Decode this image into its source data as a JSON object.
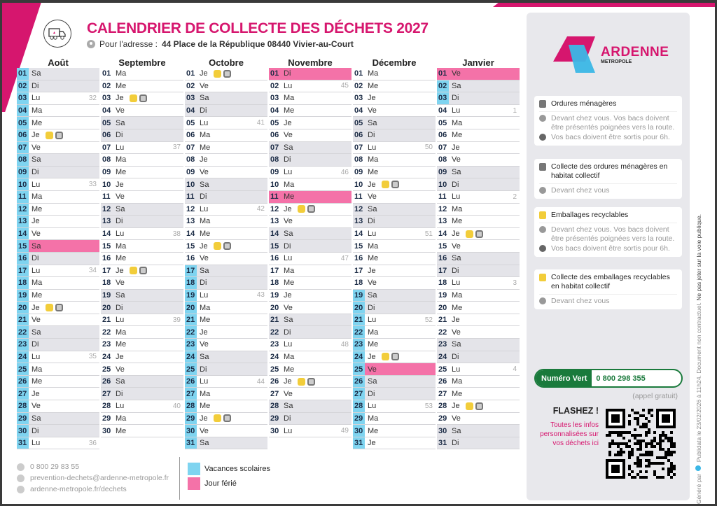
{
  "header": {
    "title": "CALENDRIER DE COLLECTE DES DÉCHETS 2027",
    "address_prefix": "Pour l'adresse :",
    "address": "44 Place de la République 08440 Vivier-au-Court"
  },
  "weekday_cycle": [
    "Lu",
    "Ma",
    "Me",
    "Je",
    "Ve",
    "Sa",
    "Di"
  ],
  "months": [
    {
      "name": "Août",
      "first_weekday": "Sa",
      "days": 31,
      "weeks": {
        "3": "32",
        "10": "33",
        "17": "34",
        "24": "35",
        "31": "36"
      },
      "collections": [
        6,
        20
      ],
      "holidays": [
        15
      ],
      "vacation": [
        1,
        31
      ]
    },
    {
      "name": "Septembre",
      "first_weekday": "Ma",
      "days": 30,
      "weeks": {
        "7": "37",
        "14": "38",
        "21": "39",
        "28": "40"
      },
      "collections": [
        3,
        17
      ],
      "holidays": [],
      "vacation": null
    },
    {
      "name": "Octobre",
      "first_weekday": "Je",
      "days": 31,
      "weeks": {
        "5": "41",
        "12": "42",
        "19": "43",
        "26": "44"
      },
      "collections": [
        1,
        15,
        29
      ],
      "holidays": [],
      "vacation": [
        17,
        31
      ]
    },
    {
      "name": "Novembre",
      "first_weekday": "Di",
      "days": 30,
      "weeks": {
        "2": "45",
        "9": "46",
        "16": "47",
        "23": "48",
        "30": "49"
      },
      "collections": [
        12,
        26
      ],
      "holidays": [
        1,
        11
      ],
      "vacation": null
    },
    {
      "name": "Décembre",
      "first_weekday": "Ma",
      "days": 31,
      "weeks": {
        "7": "50",
        "14": "51",
        "21": "52",
        "28": "53"
      },
      "collections": [
        10,
        24
      ],
      "holidays": [
        25
      ],
      "vacation": [
        19,
        31
      ]
    },
    {
      "name": "Janvier",
      "first_weekday": "Ve",
      "days": 31,
      "weeks": {
        "4": "1",
        "11": "2",
        "18": "3",
        "25": "4"
      },
      "collections": [
        14,
        28
      ],
      "holidays": [
        1
      ],
      "vacation": [
        2,
        3
      ]
    }
  ],
  "sidebar": {
    "logo": {
      "name": "ARDENNE",
      "sub": "METROPOLE"
    },
    "cards": [
      {
        "title": "Ordures ménagères",
        "lines": [
          "Devant chez vous. Vos bacs doivent être présentés poignées vers la route.",
          "Vos bacs doivent être sortis pour 6h."
        ]
      },
      {
        "title": "Collecte des ordures ménagères en habitat collectif",
        "lines": [
          "Devant chez vous"
        ]
      },
      {
        "title": "Emballages recyclables",
        "lines": [
          "Devant chez vous. Vos bacs doivent être présentés poignées vers la route.",
          "Vos bacs doivent être sortis pour 6h."
        ]
      },
      {
        "title": "Collecte des emballages recyclables en habitat collectif",
        "lines": [
          "Devant chez vous"
        ]
      }
    ],
    "numero_vert_label": "Numéro Vert",
    "numero_vert": "0 800 298 355",
    "appel": "(appel gratuit)",
    "flash_title": "FLASHEZ !",
    "flash_text": "Toutes les infos personnalisées sur vos déchets ici"
  },
  "footer": {
    "phone": "0 800 29 83 55",
    "email": "prevention-dechets@ardenne-metropole.fr",
    "website": "ardenne-metropole.fr/dechets",
    "legend": [
      {
        "label": "Vacances scolaires",
        "color": "#7fd4f0"
      },
      {
        "label": "Jour férié",
        "color": "#f472a8"
      }
    ],
    "generated_prefix": "Généré par",
    "generator": "Publidata",
    "generated_text": "le 23/02/2026 à 11h24. Document non contractuel.",
    "notice": "Ne pas jeter sur la voie publique."
  },
  "colors": {
    "brand_pink": "#d6166e",
    "brand_blue": "#3bb7e6",
    "green": "#1a7a3c",
    "recycle": "#f2cd3a",
    "waste": "#777777"
  }
}
